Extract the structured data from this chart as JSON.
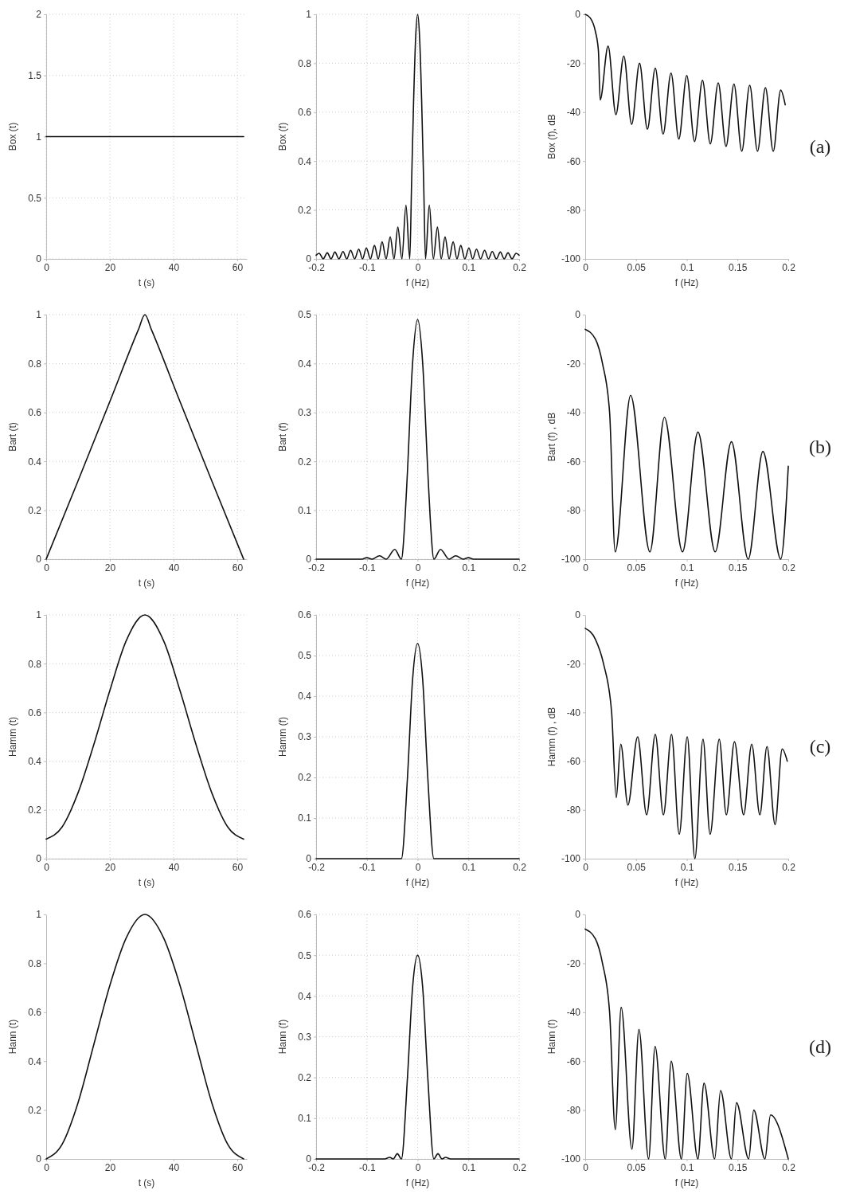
{
  "chart_data": [
    {
      "type": "line",
      "xlabel": "t (s)",
      "ylabel": "Box (t)",
      "xlim": [
        0,
        63
      ],
      "xticks": [
        0,
        20,
        40,
        60
      ],
      "ylim": [
        0,
        2
      ],
      "yticks": [
        0,
        0.5,
        1,
        1.5,
        2
      ],
      "grid": true,
      "series": [
        {
          "color": "#111111",
          "x": [
            0,
            62
          ],
          "values": [
            1,
            1
          ]
        }
      ]
    },
    {
      "type": "line",
      "xlabel": "f (Hz)",
      "ylabel": "Box (f)",
      "xlim": [
        -0.2,
        0.2
      ],
      "xticks": [
        -0.2,
        -0.1,
        0,
        0.1,
        0.2
      ],
      "ylim": [
        0,
        1
      ],
      "yticks": [
        0,
        0.2,
        0.4,
        0.6,
        0.8,
        1
      ],
      "grid": true,
      "series": [
        {
          "color": "#111111",
          "x": [
            -0.2,
            -0.194,
            -0.186,
            -0.178,
            -0.1705,
            -0.163,
            -0.155,
            -0.147,
            -0.1395,
            -0.132,
            -0.124,
            -0.116,
            -0.1085,
            -0.101,
            -0.093,
            -0.085,
            -0.0775,
            -0.07,
            -0.062,
            -0.054,
            -0.0465,
            -0.039,
            -0.031,
            -0.023,
            -0.0155,
            -0.012,
            -0.008,
            -0.004,
            0,
            0.004,
            0.008,
            0.012,
            0.0155,
            0.023,
            0.031,
            0.039,
            0.0465,
            0.054,
            0.062,
            0.07,
            0.0775,
            0.085,
            0.093,
            0.101,
            0.1085,
            0.116,
            0.124,
            0.132,
            0.1395,
            0.147,
            0.155,
            0.163,
            0.1705,
            0.178,
            0.186,
            0.194,
            0.2
          ],
          "values": [
            0.015,
            0.023,
            0,
            0.025,
            0,
            0.028,
            0,
            0.03,
            0,
            0.035,
            0,
            0.04,
            0,
            0.045,
            0,
            0.055,
            0,
            0.07,
            0,
            0.09,
            0,
            0.13,
            0,
            0.22,
            0,
            0.3,
            0.64,
            0.9,
            1,
            0.9,
            0.64,
            0.3,
            0,
            0.22,
            0,
            0.13,
            0,
            0.09,
            0,
            0.07,
            0,
            0.055,
            0,
            0.045,
            0,
            0.04,
            0,
            0.035,
            0,
            0.03,
            0,
            0.028,
            0,
            0.025,
            0,
            0.023,
            0.015
          ]
        }
      ]
    },
    {
      "type": "line",
      "xlabel": "f (Hz)",
      "ylabel": "Box (f), dB",
      "xlim": [
        0,
        0.2
      ],
      "xticks": [
        0,
        0.05,
        0.1,
        0.15,
        0.2
      ],
      "ylim": [
        -100,
        0
      ],
      "yticks": [
        -100,
        -80,
        -60,
        -40,
        -20,
        0
      ],
      "annotations": [
        "(a)"
      ],
      "series": [
        {
          "color": "#111111",
          "x": [
            0,
            0.005,
            0.01,
            0.013,
            0.0147,
            0.0225,
            0.0302,
            0.038,
            0.0457,
            0.0535,
            0.0612,
            0.069,
            0.0767,
            0.0845,
            0.0922,
            0.1,
            0.1077,
            0.1155,
            0.1232,
            0.131,
            0.1387,
            0.1465,
            0.1542,
            0.162,
            0.1697,
            0.1775,
            0.1852,
            0.1925,
            0.197
          ],
          "values": [
            0,
            -1.5,
            -7,
            -15,
            -35,
            -13,
            -41,
            -17,
            -45,
            -20,
            -47,
            -22,
            -49,
            -24,
            -51,
            -25,
            -52,
            -27,
            -53,
            -28,
            -54,
            -28.5,
            -56,
            -29,
            -56,
            -30,
            -56,
            -31,
            -37
          ]
        }
      ]
    },
    {
      "type": "line",
      "xlabel": "t (s)",
      "ylabel": "Bart (t)",
      "xlim": [
        0,
        63
      ],
      "xticks": [
        0,
        20,
        40,
        60
      ],
      "ylim": [
        0,
        1
      ],
      "yticks": [
        0,
        0.2,
        0.4,
        0.6,
        0.8,
        1
      ],
      "grid": true,
      "series": [
        {
          "color": "#111111",
          "x": [
            0,
            10,
            20,
            29,
            31,
            33,
            42,
            52,
            62
          ],
          "values": [
            0,
            0.32,
            0.645,
            0.94,
            1,
            0.94,
            0.645,
            0.32,
            0
          ]
        }
      ]
    },
    {
      "type": "line",
      "xlabel": "f (Hz)",
      "ylabel": "Bart (f)",
      "xlim": [
        -0.2,
        0.2
      ],
      "xticks": [
        -0.2,
        -0.1,
        0,
        0.1,
        0.2
      ],
      "ylim": [
        0,
        0.5
      ],
      "yticks": [
        0,
        0.1,
        0.2,
        0.3,
        0.4,
        0.5
      ],
      "grid": true,
      "series": [
        {
          "color": "#111111",
          "x": [
            -0.2,
            -0.11,
            -0.1,
            -0.09,
            -0.075,
            -0.062,
            -0.045,
            -0.032,
            -0.025,
            -0.02,
            -0.01,
            0,
            0.01,
            0.02,
            0.025,
            0.032,
            0.045,
            0.062,
            0.075,
            0.09,
            0.1,
            0.11,
            0.2
          ],
          "values": [
            0,
            0,
            0.003,
            0,
            0.007,
            0,
            0.02,
            0,
            0.08,
            0.18,
            0.4,
            0.49,
            0.4,
            0.18,
            0.08,
            0,
            0.02,
            0,
            0.007,
            0,
            0.003,
            0,
            0
          ]
        }
      ]
    },
    {
      "type": "line",
      "xlabel": "f (Hz)",
      "ylabel": "Bart (f) , dB",
      "xlim": [
        0,
        0.2
      ],
      "xticks": [
        0,
        0.05,
        0.1,
        0.15,
        0.2
      ],
      "ylim": [
        -100,
        0
      ],
      "yticks": [
        -100,
        -80,
        -60,
        -40,
        -20,
        0
      ],
      "annotations": [
        "(b)"
      ],
      "series": [
        {
          "color": "#111111",
          "x": [
            0,
            0.01,
            0.017,
            0.024,
            0.0295,
            0.0447,
            0.0637,
            0.078,
            0.0958,
            0.111,
            0.128,
            0.144,
            0.1605,
            0.175,
            0.1926,
            0.2
          ],
          "values": [
            -6,
            -10,
            -20,
            -40,
            -97,
            -33,
            -97,
            -42,
            -97,
            -48,
            -97,
            -52,
            -100,
            -56,
            -100,
            -62
          ]
        }
      ]
    },
    {
      "type": "line",
      "xlabel": "t (s)",
      "ylabel": "Hamm (t)",
      "xlim": [
        0,
        63
      ],
      "xticks": [
        0,
        20,
        40,
        60
      ],
      "ylim": [
        0,
        1
      ],
      "yticks": [
        0,
        0.2,
        0.4,
        0.6,
        0.8,
        1
      ],
      "grid": true,
      "series": [
        {
          "color": "#111111",
          "x": [
            0,
            5,
            10,
            15,
            20,
            25,
            31,
            37,
            42,
            47,
            52,
            57,
            62
          ],
          "values": [
            0.08,
            0.13,
            0.27,
            0.47,
            0.69,
            0.89,
            1,
            0.89,
            0.69,
            0.47,
            0.27,
            0.13,
            0.08
          ]
        }
      ]
    },
    {
      "type": "line",
      "xlabel": "f (Hz)",
      "ylabel": "Hamm (f)",
      "xlim": [
        -0.2,
        0.2
      ],
      "xticks": [
        -0.2,
        -0.1,
        0,
        0.1,
        0.2
      ],
      "ylim": [
        0,
        0.6
      ],
      "yticks": [
        0,
        0.1,
        0.2,
        0.3,
        0.4,
        0.5,
        0.6
      ],
      "grid": true,
      "series": [
        {
          "color": "#111111",
          "x": [
            -0.2,
            -0.032,
            -0.02,
            -0.01,
            0,
            0.01,
            0.02,
            0.032,
            0.2
          ],
          "values": [
            0,
            0,
            0.2,
            0.44,
            0.53,
            0.44,
            0.2,
            0,
            0
          ]
        }
      ]
    },
    {
      "type": "line",
      "xlabel": "f (Hz)",
      "ylabel": "Hamm (f) , dB",
      "xlim": [
        0,
        0.2
      ],
      "xticks": [
        0,
        0.05,
        0.1,
        0.15,
        0.2
      ],
      "ylim": [
        -100,
        0
      ],
      "yticks": [
        -100,
        -80,
        -60,
        -40,
        -20,
        0
      ],
      "annotations": [
        "(c)"
      ],
      "series": [
        {
          "color": "#111111",
          "x": [
            0,
            0.01,
            0.018,
            0.026,
            0.0305,
            0.035,
            0.042,
            0.0516,
            0.0605,
            0.069,
            0.077,
            0.085,
            0.0926,
            0.1005,
            0.108,
            0.116,
            0.123,
            0.132,
            0.139,
            0.147,
            0.156,
            0.164,
            0.172,
            0.179,
            0.187,
            0.194,
            0.199
          ],
          "values": [
            -5.5,
            -10,
            -20,
            -40,
            -75,
            -53,
            -78,
            -50,
            -82,
            -49,
            -82,
            -49,
            -90,
            -50,
            -100,
            -51,
            -90,
            -51,
            -82,
            -52,
            -82,
            -53,
            -82,
            -54,
            -86,
            -55,
            -60
          ]
        }
      ]
    },
    {
      "type": "line",
      "xlabel": "t (s)",
      "ylabel": "Hann (t)",
      "xlim": [
        0,
        63
      ],
      "xticks": [
        0,
        20,
        40,
        60
      ],
      "ylim": [
        0,
        1
      ],
      "yticks": [
        0,
        0.2,
        0.4,
        0.6,
        0.8,
        1
      ],
      "series": [
        {
          "color": "#111111",
          "x": [
            0,
            5,
            10,
            15,
            20,
            25,
            31,
            37,
            42,
            47,
            52,
            57,
            62
          ],
          "values": [
            0,
            0.06,
            0.23,
            0.47,
            0.71,
            0.9,
            1,
            0.9,
            0.71,
            0.47,
            0.23,
            0.06,
            0
          ]
        }
      ]
    },
    {
      "type": "line",
      "xlabel": "f (Hz)",
      "ylabel": "Hann (f)",
      "xlim": [
        -0.2,
        0.2
      ],
      "xticks": [
        -0.2,
        -0.1,
        0,
        0.1,
        0.2
      ],
      "ylim": [
        0,
        0.6
      ],
      "yticks": [
        0,
        0.1,
        0.2,
        0.3,
        0.4,
        0.5,
        0.6
      ],
      "grid": true,
      "series": [
        {
          "color": "#111111",
          "x": [
            -0.2,
            -0.065,
            -0.055,
            -0.048,
            -0.04,
            -0.032,
            -0.02,
            -0.01,
            0,
            0.01,
            0.02,
            0.032,
            0.04,
            0.048,
            0.055,
            0.065,
            0.2
          ],
          "values": [
            0,
            0,
            0.004,
            0,
            0.013,
            0,
            0.2,
            0.42,
            0.5,
            0.42,
            0.2,
            0,
            0.013,
            0,
            0.004,
            0,
            0
          ]
        }
      ]
    },
    {
      "type": "line",
      "xlabel": "f (Hz)",
      "ylabel": "Hann (f)",
      "xlim": [
        0,
        0.2
      ],
      "xticks": [
        0,
        0.05,
        0.1,
        0.15,
        0.2
      ],
      "ylim": [
        -100,
        0
      ],
      "yticks": [
        -100,
        -80,
        -60,
        -40,
        -20,
        0
      ],
      "annotations": [
        "(d)"
      ],
      "series": [
        {
          "color": "#111111",
          "x": [
            0,
            0.01,
            0.017,
            0.024,
            0.0296,
            0.0354,
            0.046,
            0.0529,
            0.0624,
            0.0688,
            0.0788,
            0.0847,
            0.0947,
            0.1005,
            0.111,
            0.117,
            0.1275,
            0.1333,
            0.144,
            0.149,
            0.161,
            0.166,
            0.177,
            0.1825,
            0.2
          ],
          "values": [
            -6,
            -10,
            -20,
            -40,
            -88,
            -38,
            -96,
            -47,
            -100,
            -54,
            -100,
            -60,
            -100,
            -65,
            -100,
            -69,
            -100,
            -72,
            -100,
            -77,
            -100,
            -80,
            -100,
            -82,
            -100
          ]
        }
      ]
    }
  ]
}
